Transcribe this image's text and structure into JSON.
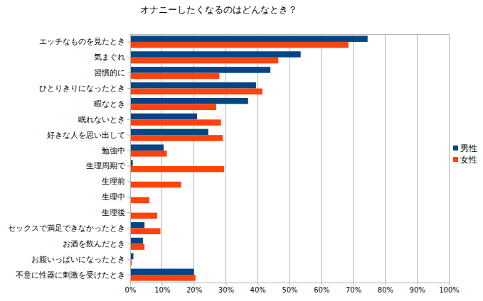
{
  "chart_data": {
    "type": "bar",
    "orientation": "horizontal",
    "title": "オナニーしたくなるのはどんなとき？",
    "categories": [
      "エッチなものを見たとき",
      "気まぐれ",
      "習慣的に",
      "ひとりきりになったとき",
      "暇なとき",
      "眠れないとき",
      "好きな人を思い出して",
      "勉強中",
      "生理周期で",
      "生理前",
      "生理中",
      "生理後",
      "セックスで満足できなかったとき",
      "お酒を飲んだとき",
      "お腹いっぱいになったとき",
      "不意に性器に刺激を受けたとき"
    ],
    "series": [
      {
        "name": "男性",
        "color": "#004586",
        "values": [
          74.5,
          53.5,
          44,
          39.5,
          37,
          21,
          24.5,
          10.5,
          0.8,
          0,
          0,
          0,
          4.5,
          4,
          1,
          20
        ]
      },
      {
        "name": "女性",
        "color": "#ff420e",
        "values": [
          68.5,
          46.5,
          28,
          41.5,
          27,
          28.5,
          29,
          11.5,
          29.5,
          16,
          6,
          8.5,
          9.5,
          4.5,
          0.5,
          20.5
        ]
      }
    ],
    "xlim": [
      0,
      100
    ],
    "xticks": [
      {
        "value": 0,
        "label": "0%"
      },
      {
        "value": 10,
        "label": "10%"
      },
      {
        "value": 20,
        "label": "20%"
      },
      {
        "value": 30,
        "label": "30%"
      },
      {
        "value": 40,
        "label": "40%"
      },
      {
        "value": 50,
        "label": "50%"
      },
      {
        "value": 60,
        "label": "60%"
      },
      {
        "value": 70,
        "label": "70%"
      },
      {
        "value": 80,
        "label": "80%"
      },
      {
        "value": 90,
        "label": "90%"
      },
      {
        "value": 100,
        "label": "100%"
      }
    ],
    "grid": true,
    "legend": "right"
  }
}
